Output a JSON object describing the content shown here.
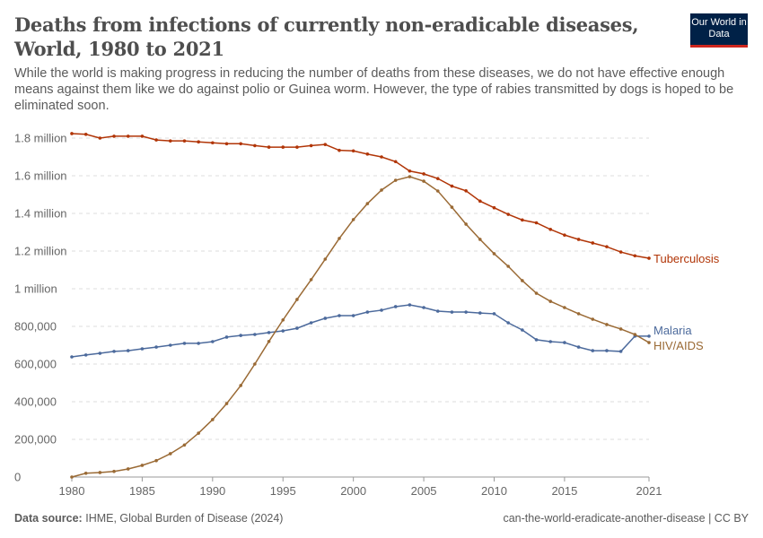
{
  "header": {
    "title": "Deaths from infections of currently non-eradicable diseases, World, 1980 to 2021",
    "subtitle": "While the world is making progress in reducing the number of deaths from these diseases, we do not have effective enough means against them like we do against polio or Guinea worm. However, the type of rabies transmitted by dogs is hoped to be eliminated soon.",
    "logo_text": "Our World in Data"
  },
  "footer": {
    "source_label": "Data source:",
    "source": "IHME, Global Burden of Disease (2024)",
    "right": "can-the-world-eradicate-another-disease | CC BY"
  },
  "chart_data": {
    "type": "line",
    "x": [
      1980,
      1981,
      1982,
      1983,
      1984,
      1985,
      1986,
      1987,
      1988,
      1989,
      1990,
      1991,
      1992,
      1993,
      1994,
      1995,
      1996,
      1997,
      1998,
      1999,
      2000,
      2001,
      2002,
      2003,
      2004,
      2005,
      2006,
      2007,
      2008,
      2009,
      2010,
      2011,
      2012,
      2013,
      2014,
      2015,
      2016,
      2017,
      2018,
      2019,
      2020,
      2021
    ],
    "xticks": [
      1980,
      1985,
      1990,
      1995,
      2000,
      2005,
      2010,
      2015,
      2021
    ],
    "yticks": [
      0,
      200000,
      400000,
      600000,
      800000,
      1000000,
      1200000,
      1400000,
      1600000,
      1800000
    ],
    "ytick_labels": [
      "0",
      "200,000",
      "400,000",
      "600,000",
      "800,000",
      "1 million",
      "1.2 million",
      "1.4 million",
      "1.6 million",
      "1.8 million"
    ],
    "xlim": [
      1980,
      2021
    ],
    "ylim": [
      0,
      1800000
    ],
    "grid": "horizontal dashed",
    "legend": "inline-right",
    "series": [
      {
        "name": "Tuberculosis",
        "color": "#b13507",
        "values": [
          1824000,
          1820000,
          1800000,
          1810000,
          1810000,
          1810000,
          1790000,
          1785000,
          1785000,
          1780000,
          1775000,
          1770000,
          1770000,
          1760000,
          1752000,
          1752000,
          1752000,
          1760000,
          1766000,
          1735000,
          1732000,
          1715000,
          1700000,
          1675000,
          1625000,
          1610000,
          1585000,
          1545000,
          1520000,
          1465000,
          1430000,
          1395000,
          1365000,
          1350000,
          1315000,
          1285000,
          1262000,
          1243000,
          1223000,
          1195000,
          1175000,
          1162000
        ]
      },
      {
        "name": "Malaria",
        "color": "#4c6a9c",
        "values": [
          638000,
          648000,
          657000,
          667000,
          671000,
          681000,
          690000,
          700000,
          710000,
          710000,
          719000,
          743000,
          752000,
          757000,
          767000,
          776000,
          790000,
          819000,
          843000,
          857000,
          857000,
          876000,
          886000,
          905000,
          914000,
          900000,
          881000,
          876000,
          876000,
          871000,
          867000,
          819000,
          781000,
          729000,
          719000,
          714000,
          690000,
          671000,
          671000,
          667000,
          748000,
          748000
        ]
      },
      {
        "name": "HIV/AIDS",
        "color": "#9a6a35",
        "values": [
          0,
          20000,
          24000,
          30000,
          43000,
          62000,
          87000,
          124000,
          170000,
          233000,
          305000,
          390000,
          486000,
          600000,
          720000,
          834000,
          943000,
          1048000,
          1157000,
          1267000,
          1367000,
          1452000,
          1524000,
          1576000,
          1595000,
          1571000,
          1519000,
          1433000,
          1343000,
          1262000,
          1186000,
          1119000,
          1043000,
          976000,
          933000,
          900000,
          867000,
          838000,
          810000,
          786000,
          757000,
          714000
        ]
      }
    ]
  }
}
